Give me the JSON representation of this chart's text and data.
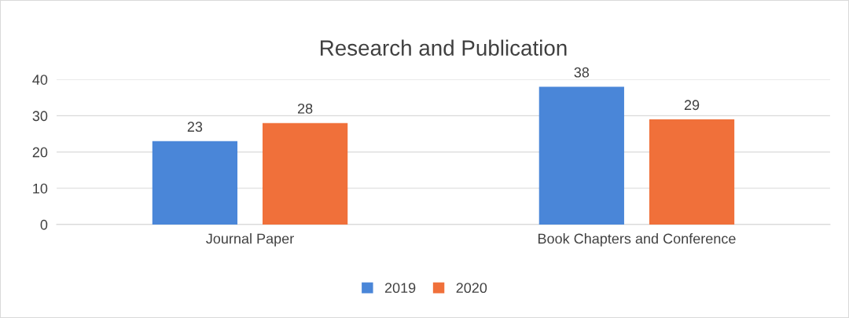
{
  "chart_data": {
    "type": "bar",
    "title": "Research and Publication",
    "categories": [
      "Journal Paper",
      "Book Chapters and Conference"
    ],
    "series": [
      {
        "name": "2019",
        "color": "#4a86d8",
        "values": [
          23,
          38
        ]
      },
      {
        "name": "2020",
        "color": "#f0703a",
        "values": [
          28,
          29
        ]
      }
    ],
    "ylim": [
      0,
      40
    ],
    "yticks": [
      0,
      10,
      20,
      30,
      40
    ],
    "grid": "y",
    "legend": "bottom",
    "data_labels": true
  }
}
